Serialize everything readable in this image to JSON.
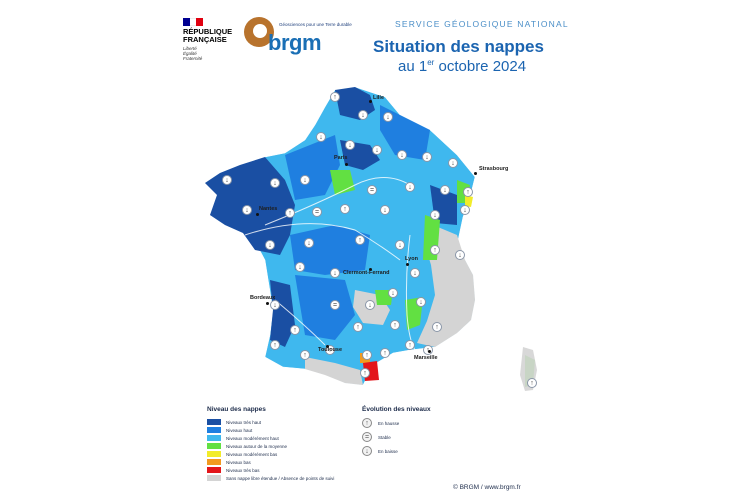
{
  "header": {
    "republique": [
      "RÉPUBLIQUE",
      "FRANÇAISE"
    ],
    "devise": [
      "Liberté",
      "Égalité",
      "Fraternité"
    ],
    "brgm_tagline": "Géosciences pour une Terre durable",
    "brgm_word": "brgm",
    "service": "SERVICE GÉOLOGIQUE NATIONAL",
    "title_line1": "Situation des nappes",
    "title_line2_prefix": "au 1",
    "title_line2_sup": "er",
    "title_line2_suffix": " octobre 2024"
  },
  "colors": {
    "tres_haut": "#1a4fa3",
    "haut": "#1f7fe0",
    "moderement_haut": "#3fb8ee",
    "autour_moyenne": "#62e042",
    "moderement_bas": "#f2ec2a",
    "bas": "#f29a1f",
    "tres_bas": "#e3161b",
    "absence": "#d4d4d4"
  },
  "cities": {
    "lille": "Lille",
    "paris": "Paris",
    "strasbourg": "Strasbourg",
    "nantes": "Nantes",
    "lyon": "Lyon",
    "clermont": "Clermont-Ferrand",
    "bordeaux": "Bordeaux",
    "toulouse": "Toulouse",
    "marseille": "Marseille"
  },
  "legend": {
    "title": "Niveau des nappes",
    "items": [
      {
        "label": "Niveaux très haut",
        "color": "#1a4fa3"
      },
      {
        "label": "Niveaux haut",
        "color": "#1f7fe0"
      },
      {
        "label": "Niveaux modérément haut",
        "color": "#3fb8ee"
      },
      {
        "label": "Niveaux autour de la moyenne",
        "color": "#62e042"
      },
      {
        "label": "Niveaux modérément bas",
        "color": "#f2ec2a"
      },
      {
        "label": "Niveaux bas",
        "color": "#f29a1f"
      },
      {
        "label": "Niveaux très bas",
        "color": "#e3161b"
      },
      {
        "label": "Sans nappe libre étendue / Absence de points de suivi",
        "color": "#d4d4d4"
      }
    ]
  },
  "evolution": {
    "title": "Évolution des niveaux",
    "items": [
      {
        "label": "En hausse",
        "icon": "arrow-up-icon",
        "glyph": "↑"
      },
      {
        "label": "Stable",
        "icon": "equals-icon",
        "glyph": "="
      },
      {
        "label": "En baisse",
        "icon": "arrow-down-icon",
        "glyph": "↓"
      }
    ]
  },
  "copyright": "© BRGM / www.brgm.fr"
}
